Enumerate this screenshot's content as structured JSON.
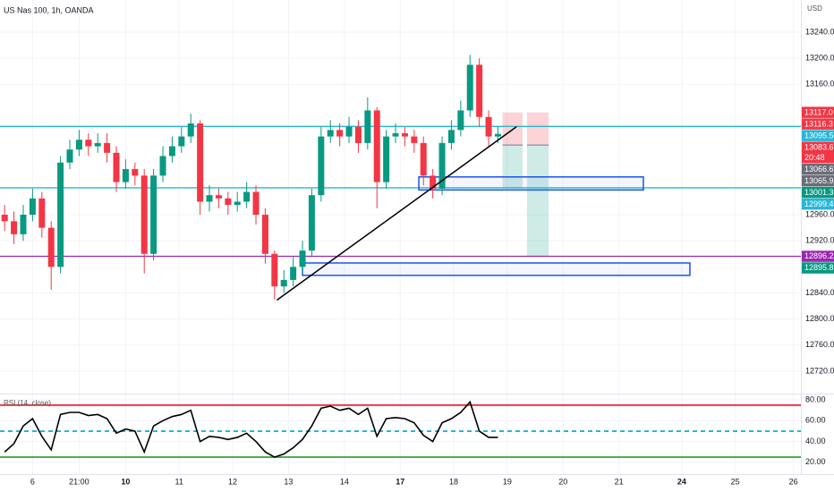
{
  "chart_data": [
    {
      "type": "candlestick",
      "title": "US Nas 100, 1h, OANDA",
      "currency": "USD",
      "up_color": "#089981",
      "down_color": "#f23645",
      "x": [
        2,
        6,
        10,
        14,
        18,
        22,
        26,
        30,
        34,
        38,
        42,
        46,
        50,
        54,
        58,
        62,
        66,
        70,
        74,
        78,
        82,
        86,
        90,
        94,
        98,
        102,
        106,
        110,
        114,
        118,
        122,
        126,
        130,
        134,
        138,
        142,
        146,
        150,
        154,
        158,
        162,
        166,
        170,
        174,
        178,
        182,
        186,
        190,
        194,
        198,
        202,
        206,
        210,
        214
      ],
      "open": [
        12960,
        12950,
        12930,
        12960,
        12985,
        12940,
        12880,
        13040,
        13060,
        13075,
        13065,
        13070,
        13055,
        13010,
        13030,
        13020,
        12900,
        13020,
        13050,
        13065,
        13080,
        13100,
        12980,
        12990,
        12985,
        12975,
        12980,
        12995,
        12960,
        12900,
        12850,
        12860,
        12880,
        12905,
        12990,
        13080,
        13090,
        13080,
        13095,
        13070,
        13120,
        13010,
        13080,
        13085,
        13080,
        13070,
        13020,
        13000,
        13070,
        13090,
        13120,
        13190,
        13110,
        13080
      ],
      "high": [
        12975,
        12965,
        12975,
        13000,
        12995,
        12950,
        13050,
        13075,
        13090,
        13085,
        13085,
        13085,
        13065,
        13045,
        13040,
        13030,
        13030,
        13065,
        13080,
        13095,
        13115,
        13105,
        13005,
        13000,
        12995,
        12995,
        13010,
        13005,
        12970,
        12905,
        12875,
        12895,
        12920,
        13000,
        13095,
        13105,
        13100,
        13110,
        13105,
        13140,
        13125,
        13090,
        13100,
        13095,
        13090,
        13080,
        13030,
        13080,
        13105,
        13135,
        13205,
        13200,
        13120,
        13095
      ],
      "low": [
        12935,
        12915,
        12920,
        12950,
        12925,
        12845,
        12870,
        13030,
        13050,
        13050,
        13055,
        13040,
        12995,
        13000,
        13005,
        12870,
        12890,
        13010,
        13040,
        13055,
        13070,
        12960,
        12965,
        12970,
        12960,
        12965,
        12970,
        12945,
        12885,
        12830,
        12840,
        12850,
        12870,
        12895,
        12980,
        13070,
        13065,
        13070,
        13055,
        13060,
        12970,
        13000,
        13070,
        13065,
        13055,
        13005,
        12985,
        12990,
        13060,
        13080,
        13110,
        13095,
        13065,
        13070
      ],
      "close": [
        12950,
        12930,
        12960,
        12985,
        12940,
        12880,
        13040,
        13060,
        13075,
        13065,
        13070,
        13055,
        13010,
        13030,
        13020,
        12900,
        13020,
        13050,
        13065,
        13080,
        13100,
        12980,
        12990,
        12985,
        12975,
        12980,
        12995,
        12960,
        12900,
        12850,
        12860,
        12880,
        12905,
        12990,
        13080,
        13090,
        13080,
        13095,
        13070,
        13120,
        13010,
        13080,
        13085,
        13080,
        13070,
        13020,
        13000,
        13070,
        13090,
        13120,
        13190,
        13110,
        13080,
        13084
      ],
      "xlim": [
        0,
        344.2
      ],
      "xticks": [
        {
          "value": 14,
          "label": "6"
        },
        {
          "value": 34,
          "label": "21:00"
        },
        {
          "value": 54,
          "label": "10",
          "bold": true
        },
        {
          "value": 77,
          "label": "11"
        },
        {
          "value": 100,
          "label": "12"
        },
        {
          "value": 124,
          "label": "13"
        },
        {
          "value": 148,
          "label": "14"
        },
        {
          "value": 172,
          "label": "17",
          "bold": true
        },
        {
          "value": 195,
          "label": "18"
        },
        {
          "value": 218,
          "label": "19"
        },
        {
          "value": 242,
          "label": "20"
        },
        {
          "value": 266,
          "label": "21"
        },
        {
          "value": 293,
          "label": "24",
          "bold": true
        },
        {
          "value": 316,
          "label": "25"
        },
        {
          "value": 341,
          "label": "26"
        }
      ],
      "ylim": [
        12685.6,
        13289.4
      ],
      "yticks": [
        {
          "value": 13240,
          "label": "13240.0"
        },
        {
          "value": 13200,
          "label": "13200.0"
        },
        {
          "value": 13160,
          "label": "13160.0"
        },
        {
          "value": 12960,
          "label": "12960.0"
        },
        {
          "value": 12920,
          "label": "12920.0"
        },
        {
          "value": 12840,
          "label": "12840.0"
        },
        {
          "value": 12800,
          "label": "12800.0"
        },
        {
          "value": 12760,
          "label": "12760.0"
        },
        {
          "value": 12720,
          "label": "12720.0"
        }
      ],
      "grid": true,
      "horizontal_lines": [
        {
          "value": 13095.5,
          "color": "#29b6d8"
        },
        {
          "value": 13001.3,
          "color": "#29b6d8"
        },
        {
          "value": 12896.2,
          "color": "#9c27b0"
        }
      ],
      "rectangles": [
        {
          "x": [
            180,
            276.5
          ],
          "y": [
            13018,
            12998
          ],
          "color": "#1e53e5"
        },
        {
          "x": [
            130,
            296.5
          ],
          "y": [
            12886,
            12867
          ],
          "color": "#1e53e5"
        }
      ],
      "trendline": {
        "x": [
          119,
          222
        ],
        "y": [
          12829,
          13095
        ],
        "color": "#000000"
      },
      "positions": [
        {
          "x": [
            216,
            224.6
          ],
          "stop": 13117,
          "entry": 13067,
          "target": 13000
        },
        {
          "x": [
            226.5,
            235.8
          ],
          "stop": 13117,
          "entry": 13067,
          "target": 12897
        }
      ],
      "price_tags": [
        {
          "value": 13117.0,
          "label": "13117.0",
          "color": "#f23645"
        },
        {
          "value": 13116.3,
          "label": "13116.3",
          "color": "#f23645"
        },
        {
          "value": 13095.5,
          "label": "13095.5",
          "color": "#29b6d8"
        },
        {
          "value": 13083.6,
          "label": "13083.6",
          "color": "#f23645",
          "sub": "20:48"
        },
        {
          "value": 13066.6,
          "label": "13066.6",
          "color": "#6a6d78"
        },
        {
          "value": 13065.9,
          "label": "13065.9",
          "color": "#6a6d78"
        },
        {
          "value": 13001.3,
          "label": "13001.3",
          "color": "#089981"
        },
        {
          "value": 12999.4,
          "label": "12999.4",
          "color": "#29b6d8"
        },
        {
          "value": 12896.2,
          "label": "12896.2",
          "color": "#9c27b0"
        },
        {
          "value": 12895.8,
          "label": "12895.8",
          "color": "#089981"
        }
      ]
    },
    {
      "type": "line",
      "title": "RSI (14, close)",
      "color": "#000000",
      "x": [
        2,
        6,
        10,
        14,
        18,
        22,
        26,
        30,
        34,
        38,
        42,
        46,
        50,
        54,
        58,
        62,
        66,
        70,
        74,
        78,
        82,
        86,
        90,
        94,
        98,
        102,
        106,
        110,
        114,
        118,
        122,
        126,
        130,
        134,
        138,
        142,
        146,
        150,
        154,
        158,
        162,
        166,
        170,
        174,
        178,
        182,
        186,
        190,
        194,
        198,
        202,
        206,
        210,
        214
      ],
      "values": [
        30,
        38,
        55,
        62,
        45,
        32,
        66,
        68,
        68,
        65,
        66,
        62,
        48,
        52,
        50,
        30,
        55,
        60,
        64,
        66,
        70,
        40,
        45,
        44,
        42,
        44,
        48,
        40,
        30,
        25,
        28,
        34,
        42,
        55,
        72,
        74,
        70,
        72,
        66,
        72,
        45,
        62,
        63,
        62,
        58,
        46,
        40,
        58,
        62,
        68,
        78,
        50,
        44,
        44
      ],
      "xlim": [
        0,
        344.2
      ],
      "ylim": [
        8.7,
        85.2
      ],
      "yticks": [
        {
          "value": 80,
          "label": "80.00"
        },
        {
          "value": 60,
          "label": "60.00"
        },
        {
          "value": 40,
          "label": "40.00"
        },
        {
          "value": 20,
          "label": "20.00"
        }
      ],
      "levels": [
        {
          "value": 75,
          "color": "#f23645",
          "dashed": false
        },
        {
          "value": 50,
          "color": "#29b6d8",
          "dashed": true
        },
        {
          "value": 25,
          "color": "#4caf50",
          "dashed": false
        }
      ]
    }
  ]
}
